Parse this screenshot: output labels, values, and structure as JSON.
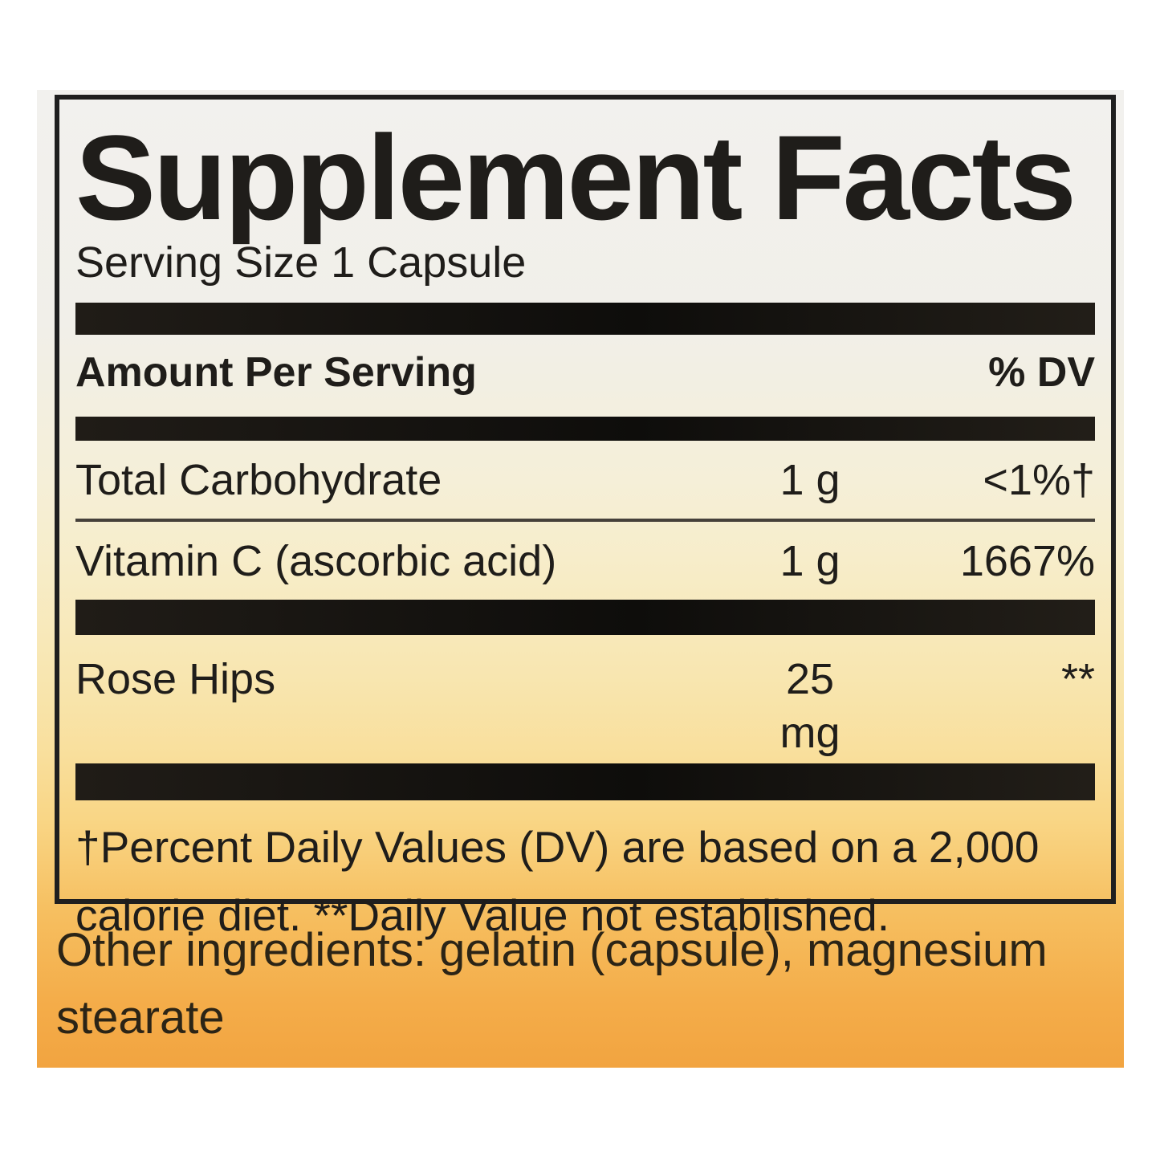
{
  "label": {
    "title": "Supplement Facts",
    "serving_size": "Serving Size 1 Capsule",
    "header": {
      "amount_col": "Amount Per Serving",
      "dv_col": "% DV"
    },
    "rows": [
      {
        "name": "Total Carbohydrate",
        "amount": "1 g",
        "dv": "<1%†"
      },
      {
        "name": "Vitamin C (ascorbic acid)",
        "amount": "1 g",
        "dv": "1667%"
      },
      {
        "name": "Rose Hips",
        "amount": "25 mg",
        "dv": "**"
      }
    ],
    "footnote": "†Percent Daily Values (DV) are based on a 2,000 calorie diet. **Daily Value not established.",
    "other_ingredients": "Other ingredients: gelatin (capsule), magnesium stearate",
    "colors": {
      "panel_border": "#1f1f1f",
      "divider_bar": "#16130f",
      "text": "#1f1d1a",
      "gradient_top": "#f2f1ee",
      "gradient_bottom": "#f2a440"
    }
  }
}
